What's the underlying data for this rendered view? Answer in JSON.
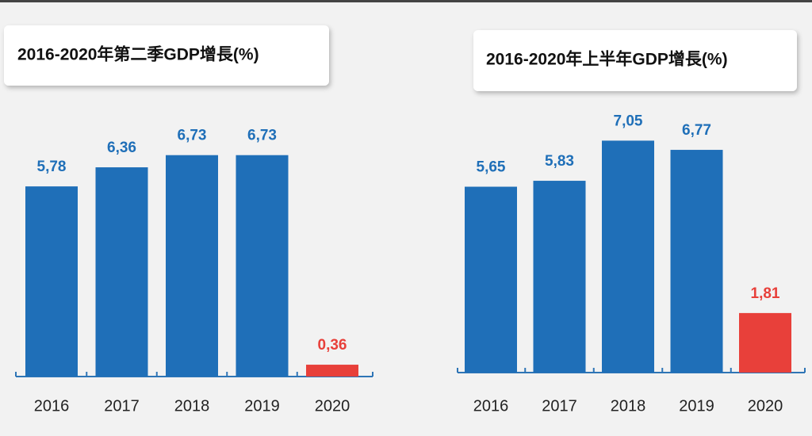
{
  "chart_data": [
    {
      "type": "bar",
      "title": "2016-2020年第二季GDP增長(%)",
      "categories": [
        "2016",
        "2017",
        "2018",
        "2019",
        "2020"
      ],
      "values": [
        5.78,
        6.36,
        6.73,
        6.73,
        0.36
      ],
      "value_labels": [
        "5,78",
        "6,36",
        "6,73",
        "6,73",
        "0,36"
      ],
      "colors": [
        "#1f6fb8",
        "#1f6fb8",
        "#1f6fb8",
        "#1f6fb8",
        "#e8403a"
      ]
    },
    {
      "type": "bar",
      "title": "2016-2020年上半年GDP增長(%)",
      "categories": [
        "2016",
        "2017",
        "2018",
        "2019",
        "2020"
      ],
      "values": [
        5.65,
        5.83,
        7.05,
        6.77,
        1.81
      ],
      "value_labels": [
        "5,65",
        "5,83",
        "7,05",
        "6,77",
        "1,81"
      ],
      "colors": [
        "#1f6fb8",
        "#1f6fb8",
        "#1f6fb8",
        "#1f6fb8",
        "#e8403a"
      ]
    }
  ]
}
